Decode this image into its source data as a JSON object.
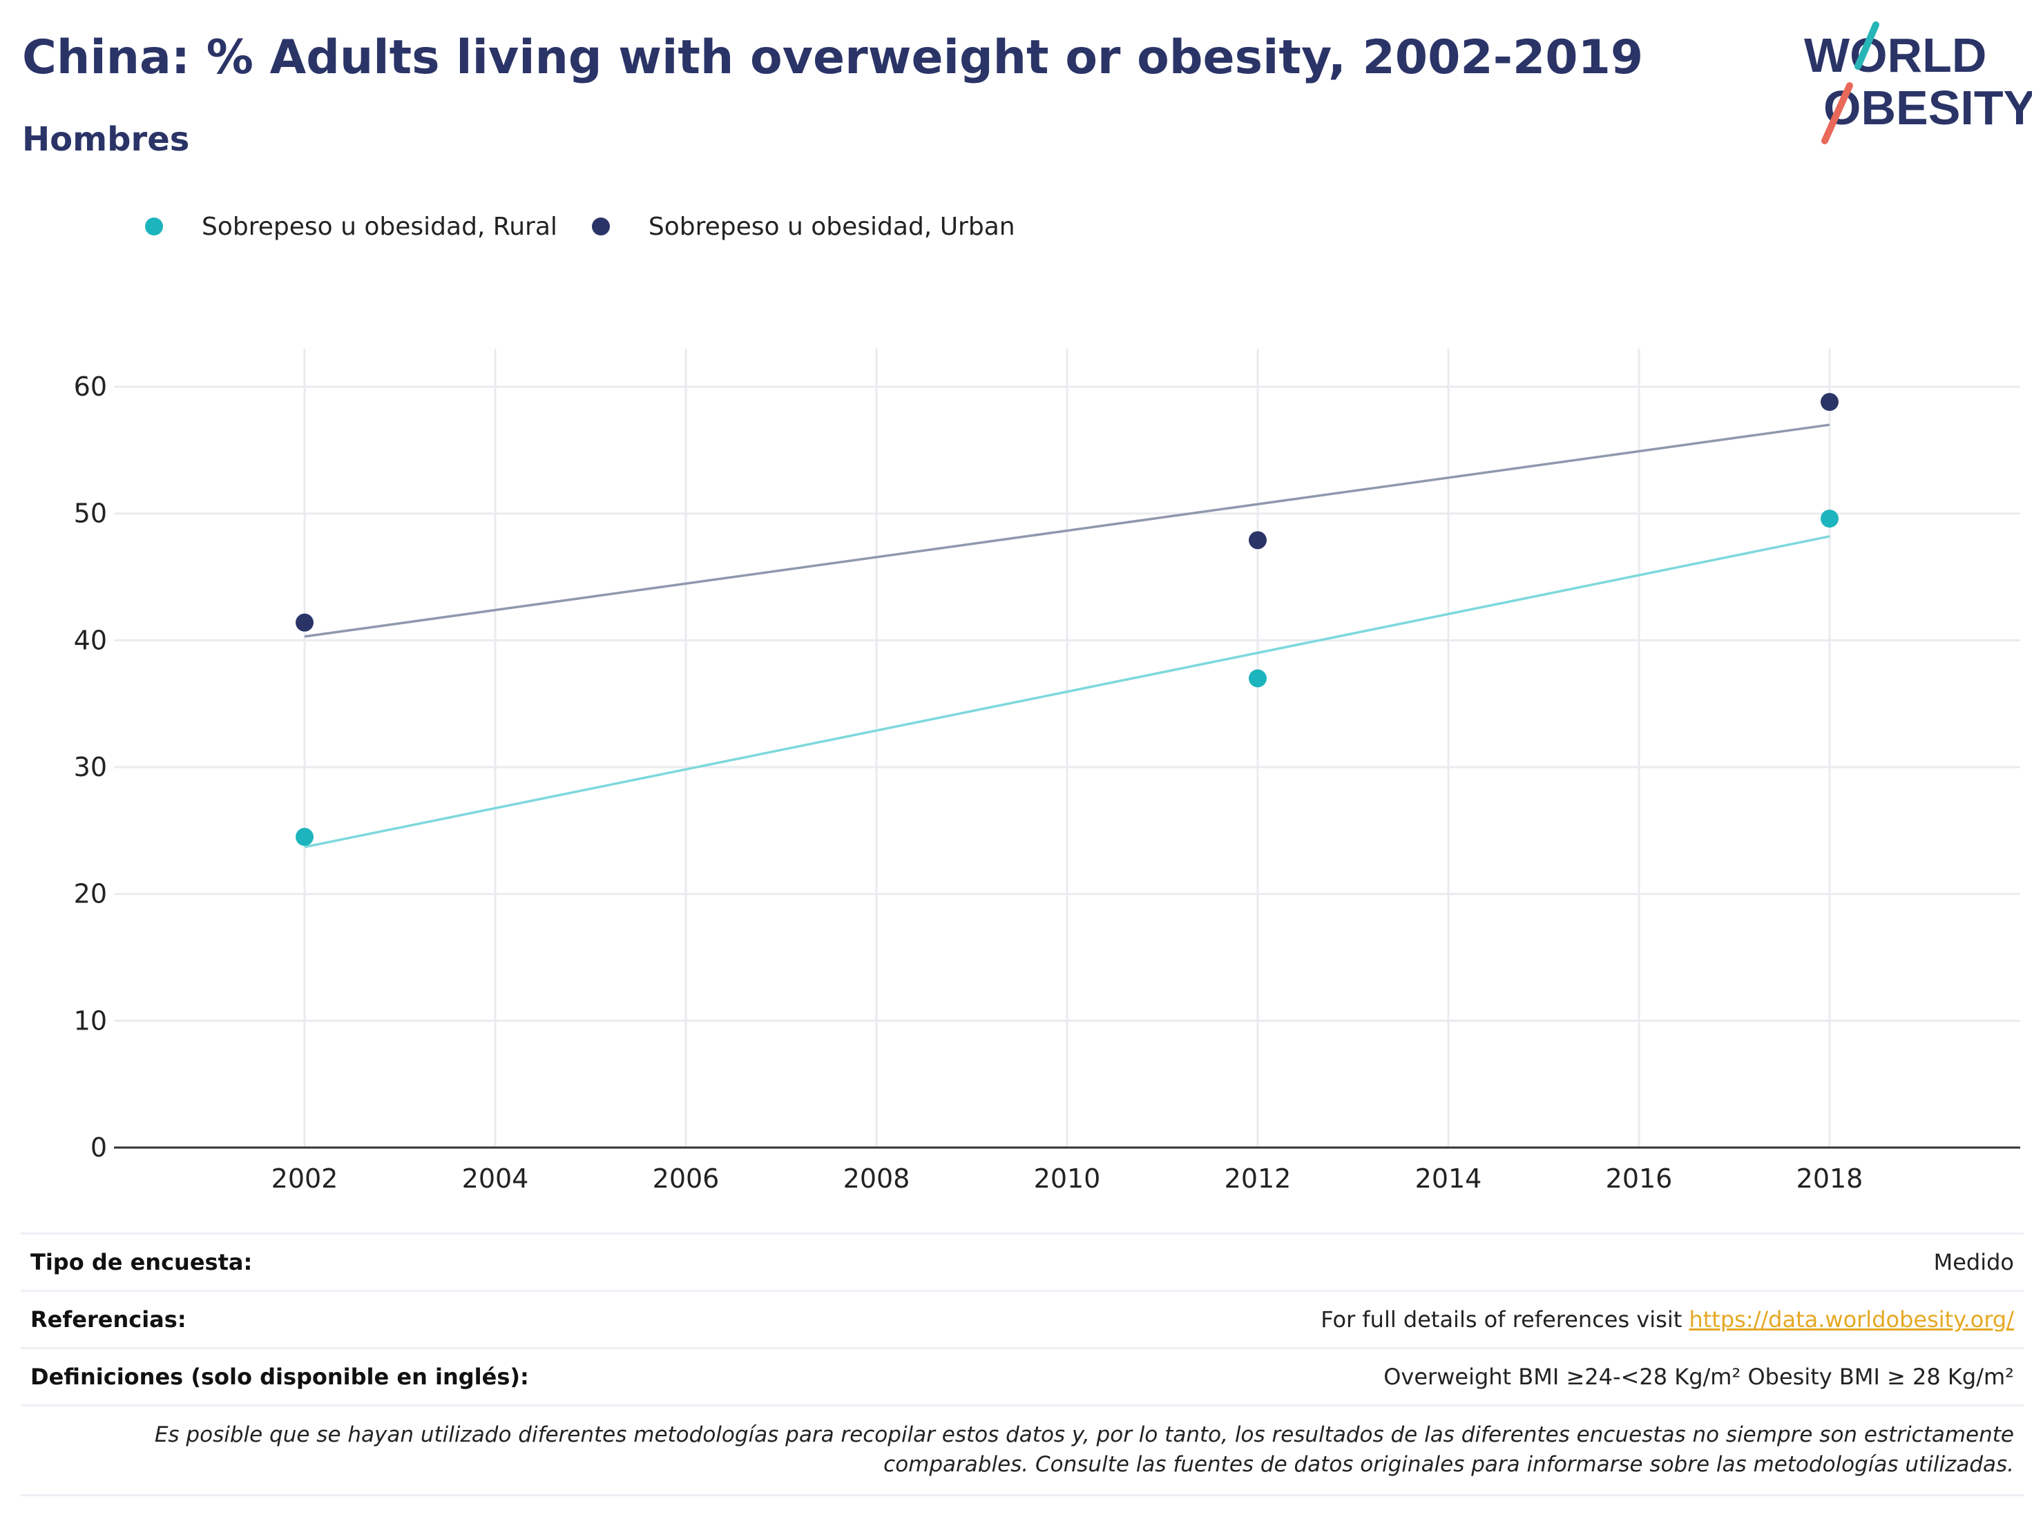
{
  "header": {
    "title": "China: % Adults living with overweight or obesity, 2002-2019",
    "subtitle": "Hombres"
  },
  "logo": {
    "line1": "WORLD",
    "line2": "OBESITY",
    "slash_colors": [
      "#27b5b8",
      "#e8685a"
    ],
    "text_color": "#2b3467"
  },
  "colors": {
    "rural": "#1cb4bd",
    "urban": "#2b3467",
    "rural_trend": "#7dd8dc",
    "urban_trend": "#9098ae",
    "grid": "#e9ebef",
    "axis": "#333333"
  },
  "chart_data": {
    "type": "scatter",
    "x_ticks": [
      2002,
      2004,
      2006,
      2008,
      2010,
      2012,
      2014,
      2016,
      2018
    ],
    "y_ticks": [
      0,
      10,
      20,
      30,
      40,
      50,
      60
    ],
    "xlim": [
      2000,
      2020
    ],
    "ylim": [
      0,
      63
    ],
    "legend_position": "top-left",
    "grid": true,
    "series": [
      {
        "name": "Sobrepeso u obesidad, Rural",
        "color": "#1cb4bd",
        "points": [
          {
            "x": 2002,
            "y": 24.5
          },
          {
            "x": 2012,
            "y": 37.0
          },
          {
            "x": 2018,
            "y": 49.6
          }
        ],
        "trend": [
          {
            "x": 2002,
            "y": 23.7
          },
          {
            "x": 2018,
            "y": 48.2
          }
        ]
      },
      {
        "name": "Sobrepeso u obesidad, Urban",
        "color": "#2b3467",
        "points": [
          {
            "x": 2002,
            "y": 41.4
          },
          {
            "x": 2012,
            "y": 47.9
          },
          {
            "x": 2018,
            "y": 58.8
          }
        ],
        "trend": [
          {
            "x": 2002,
            "y": 40.3
          },
          {
            "x": 2018,
            "y": 57.0
          }
        ]
      }
    ]
  },
  "info": {
    "survey_type_label": "Tipo de encuesta:",
    "survey_type_value": "Medido",
    "references_label": "Referencias:",
    "references_text": "For full details of references visit ",
    "references_link": "https://data.worldobesity.org/",
    "definitions_label": "Definiciones (solo disponible en inglés):",
    "definitions_value": "Overweight BMI ≥24-<28 Kg/m² Obesity BMI ≥ 28 Kg/m²",
    "note_line1": "Es posible que se hayan utilizado diferentes metodologías para recopilar estos datos y, por lo tanto, los resultados de las diferentes encuestas no siempre son estrictamente",
    "note_line2": "comparables. Consulte las fuentes de datos originales para informarse sobre las metodologías utilizadas."
  }
}
